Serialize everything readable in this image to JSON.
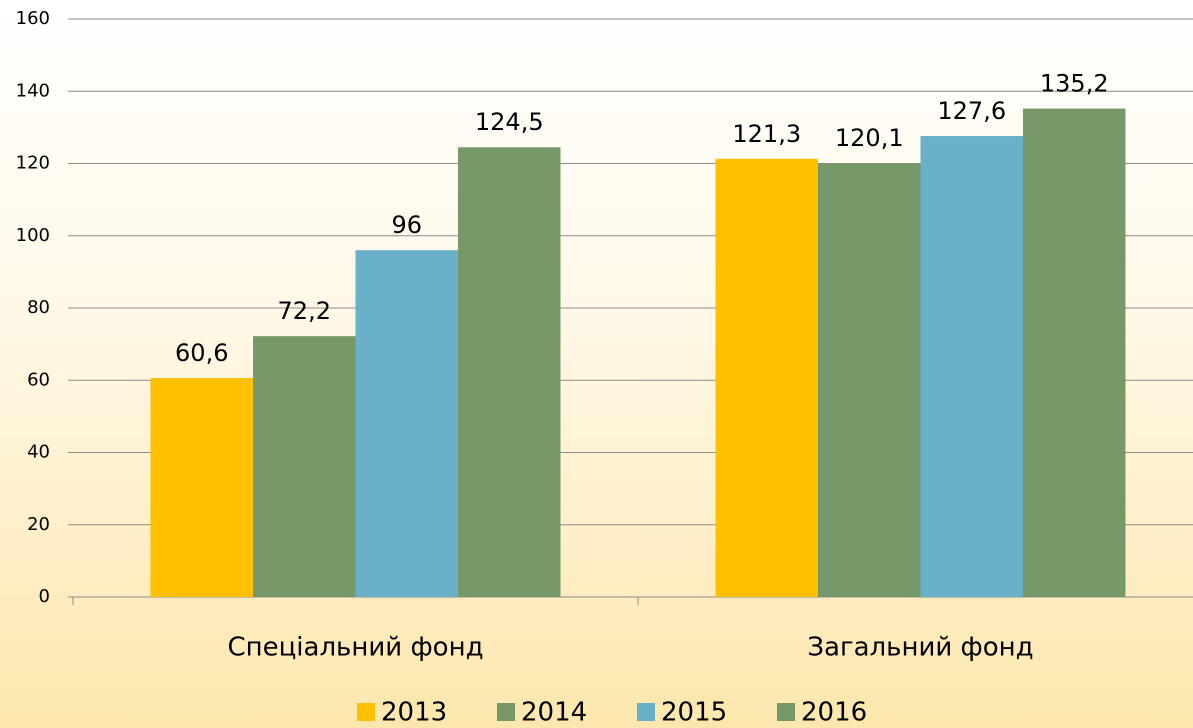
{
  "chart_data": {
    "type": "bar",
    "categories": [
      "Спеціальний фонд",
      "Загальний фонд"
    ],
    "series": [
      {
        "name": "2013",
        "color": "#ffc000",
        "values": [
          60.6,
          121.3
        ],
        "value_labels": [
          "60,6",
          "121,3"
        ]
      },
      {
        "name": "2014",
        "color": "#77996a",
        "values": [
          72.2,
          120.1
        ],
        "value_labels": [
          "72,2",
          "120,1"
        ]
      },
      {
        "name": "2015",
        "color": "#6ab0c8",
        "values": [
          96,
          127.6
        ],
        "value_labels": [
          "96",
          "127,6"
        ]
      },
      {
        "name": "2016",
        "color": "#77996a",
        "values": [
          124.5,
          135.2
        ],
        "value_labels": [
          "124,5",
          "135,2"
        ]
      }
    ],
    "ylim": [
      0,
      160
    ],
    "yticks": [
      0,
      20,
      40,
      60,
      80,
      100,
      120,
      140,
      160
    ],
    "grid": true,
    "legend": "bottom"
  }
}
